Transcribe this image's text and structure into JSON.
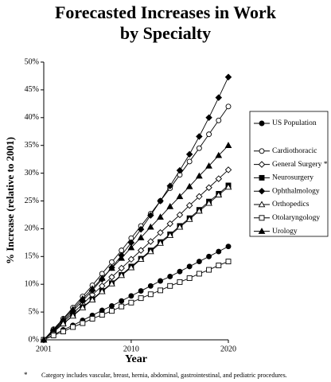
{
  "chart_data": {
    "type": "line",
    "title": [
      "Forecasted Increases in Work",
      "by Specialty"
    ],
    "x_label": "Year",
    "y_label": "% Increase (relative to 2001)",
    "footnote": {
      "mark": "*",
      "text": "Category includes vascular, breast, hernia, abdominal, gastrointestinal, and pediatric procedures."
    },
    "x": [
      2001,
      2002,
      2003,
      2004,
      2005,
      2006,
      2007,
      2008,
      2009,
      2010,
      2011,
      2012,
      2013,
      2014,
      2015,
      2016,
      2017,
      2018,
      2019,
      2020
    ],
    "xlim": [
      2001,
      2020
    ],
    "xticks": [
      2001,
      2010,
      2020
    ],
    "ylim": [
      0,
      50
    ],
    "yticks": [
      {
        "value": 0,
        "label": "0%"
      },
      {
        "value": 5,
        "label": "5%"
      },
      {
        "value": 10,
        "label": "10%"
      },
      {
        "value": 15,
        "label": "15%"
      },
      {
        "value": 20,
        "label": "20%"
      },
      {
        "value": 25,
        "label": "25%"
      },
      {
        "value": 30,
        "label": "30%"
      },
      {
        "value": 35,
        "label": "35%"
      },
      {
        "value": 40,
        "label": "40%"
      },
      {
        "value": 45,
        "label": "45%"
      },
      {
        "value": 50,
        "label": "50%"
      }
    ],
    "series": [
      {
        "name": "US Population",
        "color": "#000000",
        "marker": "circle-filled",
        "values": [
          0,
          0.9,
          1.8,
          2.6,
          3.5,
          4.4,
          5.3,
          6.1,
          7.0,
          7.9,
          8.8,
          9.7,
          10.6,
          11.4,
          12.3,
          13.2,
          14.1,
          15.0,
          15.9,
          16.8
        ]
      },
      {
        "name": "Cardiothoracic",
        "color": "#000000",
        "marker": "circle-open",
        "values": [
          0,
          1.9,
          3.8,
          5.8,
          7.8,
          9.8,
          11.9,
          14.0,
          16.1,
          18.3,
          20.5,
          22.7,
          25.0,
          27.3,
          29.7,
          32.1,
          34.5,
          37.0,
          39.5,
          42.0
        ]
      },
      {
        "name": "General Surgery *",
        "color": "#000000",
        "marker": "diamond-open",
        "values": [
          0,
          1.6,
          3.2,
          4.8,
          6.4,
          8.1,
          9.7,
          11.3,
          12.9,
          14.5,
          16.1,
          17.7,
          19.3,
          20.9,
          22.5,
          24.2,
          25.8,
          27.4,
          29.0,
          30.6
        ]
      },
      {
        "name": "Neurosurgery",
        "color": "#000000",
        "marker": "square-filled",
        "values": [
          0,
          1.5,
          2.9,
          4.4,
          5.9,
          7.3,
          8.8,
          10.2,
          11.7,
          13.2,
          14.6,
          16.1,
          17.6,
          19.0,
          20.5,
          21.9,
          23.4,
          24.9,
          26.3,
          27.8
        ]
      },
      {
        "name": "Ophthalmology",
        "color": "#000000",
        "marker": "diamond-filled",
        "values": [
          0,
          1.7,
          3.4,
          5.2,
          7.0,
          8.9,
          10.9,
          13.0,
          15.2,
          17.5,
          19.9,
          22.4,
          25.0,
          27.7,
          30.5,
          33.4,
          36.6,
          40.0,
          43.6,
          47.3
        ]
      },
      {
        "name": "Orthopedics",
        "color": "#000000",
        "marker": "triangle-open",
        "values": [
          0,
          1.4,
          2.9,
          4.3,
          5.8,
          7.2,
          8.7,
          10.1,
          11.6,
          13.0,
          14.5,
          15.9,
          17.4,
          18.8,
          20.3,
          21.7,
          23.2,
          24.6,
          26.1,
          27.5
        ]
      },
      {
        "name": "Otolaryngology",
        "color": "#000000",
        "marker": "square-open",
        "values": [
          0,
          0.8,
          1.5,
          2.3,
          3.0,
          3.8,
          4.5,
          5.2,
          6.0,
          6.7,
          7.5,
          8.2,
          8.9,
          9.7,
          10.4,
          11.1,
          11.9,
          12.6,
          13.4,
          14.1
        ]
      },
      {
        "name": "Urology",
        "color": "#000000",
        "marker": "triangle-filled",
        "values": [
          0,
          1.8,
          3.7,
          5.5,
          7.4,
          9.2,
          11.1,
          12.9,
          14.7,
          16.6,
          18.4,
          20.3,
          22.1,
          24.0,
          25.8,
          27.6,
          29.5,
          31.3,
          33.2,
          35.0
        ]
      }
    ]
  }
}
